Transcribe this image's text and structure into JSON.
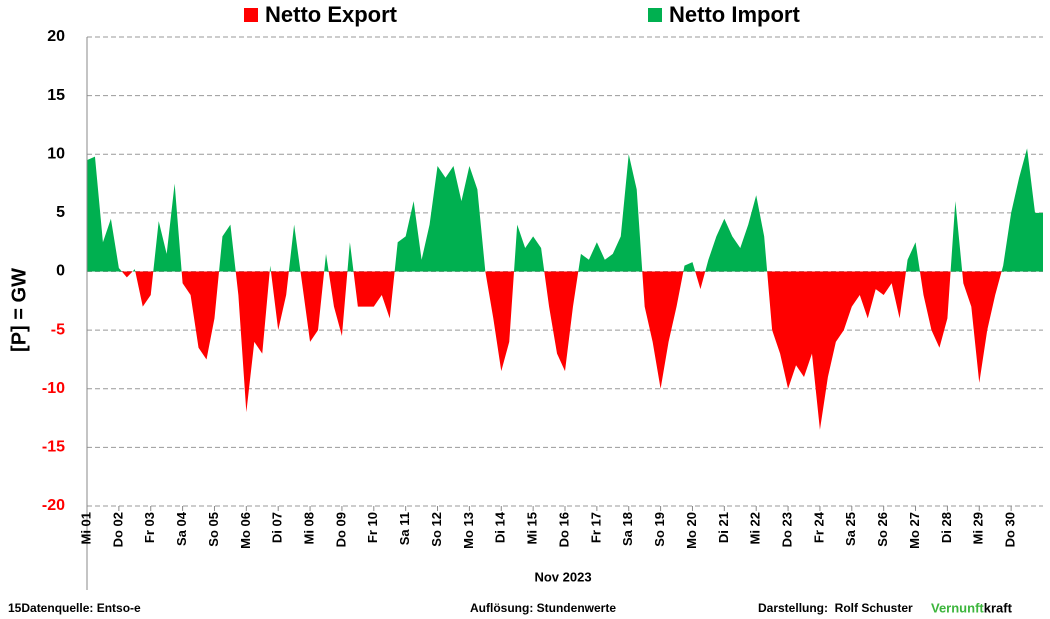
{
  "chart_data": {
    "type": "area",
    "legend": [
      {
        "name": "Netto Export",
        "color": "#ff0000",
        "sign": "negative"
      },
      {
        "name": "Netto Import",
        "color": "#00b050",
        "sign": "positive"
      }
    ],
    "ylabel": "[P] = GW",
    "xlabel": "Nov 2023",
    "ylim": [
      -20,
      20
    ],
    "yticks": [
      -20,
      -15,
      -10,
      -5,
      0,
      5,
      10,
      15,
      20
    ],
    "grid": true,
    "xlim": [
      0,
      30
    ],
    "xticks": [
      {
        "value": 0,
        "label": "Mi 01"
      },
      {
        "value": 1,
        "label": "Do 02"
      },
      {
        "value": 2,
        "label": "Fr 03"
      },
      {
        "value": 3,
        "label": "Sa 04"
      },
      {
        "value": 4,
        "label": "So 05"
      },
      {
        "value": 5,
        "label": "Mo 06"
      },
      {
        "value": 6,
        "label": "Di 07"
      },
      {
        "value": 7,
        "label": "Mi 08"
      },
      {
        "value": 8,
        "label": "Do 09"
      },
      {
        "value": 9,
        "label": "Fr 10"
      },
      {
        "value": 10,
        "label": "Sa 11"
      },
      {
        "value": 11,
        "label": "So 12"
      },
      {
        "value": 12,
        "label": "Mo 13"
      },
      {
        "value": 13,
        "label": "Di 14"
      },
      {
        "value": 14,
        "label": "Mi 15"
      },
      {
        "value": 15,
        "label": "Do 16"
      },
      {
        "value": 16,
        "label": "Fr 17"
      },
      {
        "value": 17,
        "label": "Sa 18"
      },
      {
        "value": 18,
        "label": "So 19"
      },
      {
        "value": 19,
        "label": "Mo 20"
      },
      {
        "value": 20,
        "label": "Di 21"
      },
      {
        "value": 21,
        "label": "Mi 22"
      },
      {
        "value": 22,
        "label": "Do 23"
      },
      {
        "value": 23,
        "label": "Fr 24"
      },
      {
        "value": 24,
        "label": "Sa 25"
      },
      {
        "value": 25,
        "label": "So 26"
      },
      {
        "value": 26,
        "label": "Mo 27"
      },
      {
        "value": 27,
        "label": "Di 28"
      },
      {
        "value": 28,
        "label": "Mi 29"
      },
      {
        "value": 29,
        "label": "Do 30"
      }
    ],
    "x": [
      0,
      0.25,
      0.5,
      0.75,
      1,
      1.25,
      1.5,
      1.75,
      2,
      2.25,
      2.5,
      2.75,
      3,
      3.25,
      3.5,
      3.75,
      4,
      4.25,
      4.5,
      4.75,
      5,
      5.25,
      5.5,
      5.75,
      6,
      6.25,
      6.5,
      6.75,
      7,
      7.25,
      7.5,
      7.75,
      8,
      8.25,
      8.5,
      8.75,
      9,
      9.25,
      9.5,
      9.75,
      10,
      10.25,
      10.5,
      10.75,
      11,
      11.25,
      11.5,
      11.75,
      12,
      12.25,
      12.5,
      12.75,
      13,
      13.25,
      13.5,
      13.75,
      14,
      14.25,
      14.5,
      14.75,
      15,
      15.25,
      15.5,
      15.75,
      16,
      16.25,
      16.5,
      16.75,
      17,
      17.25,
      17.5,
      17.75,
      18,
      18.25,
      18.5,
      18.75,
      19,
      19.25,
      19.5,
      19.75,
      20,
      20.25,
      20.5,
      20.75,
      21,
      21.25,
      21.5,
      21.75,
      22,
      22.25,
      22.5,
      22.75,
      23,
      23.25,
      23.5,
      23.75,
      24,
      24.25,
      24.5,
      24.75,
      25,
      25.25,
      25.5,
      25.75,
      26,
      26.25,
      26.5,
      26.75,
      27,
      27.25,
      27.5,
      27.75,
      28,
      28.25,
      28.5,
      28.75,
      29,
      29.25,
      29.5,
      29.75,
      30
    ],
    "values": [
      9.5,
      9.8,
      2.5,
      4.5,
      0.3,
      -0.5,
      0.2,
      -3,
      -2,
      4.3,
      1.5,
      7.5,
      -1,
      -2,
      -6.5,
      -7.5,
      -4,
      3,
      4,
      -2,
      -12,
      -6,
      -7,
      0.5,
      -5,
      -2,
      4,
      -1,
      -6,
      -5,
      1.5,
      -3,
      -5.5,
      2.5,
      -3,
      -3,
      -3,
      -2,
      -4,
      2.5,
      3,
      6,
      1,
      4,
      9,
      8,
      9,
      6,
      9,
      7,
      0,
      -4,
      -8.5,
      -6,
      4,
      2,
      3,
      2,
      -3,
      -7,
      -8.5,
      -3,
      1.5,
      1,
      2.5,
      1,
      1.5,
      3,
      10,
      7,
      -3,
      -6,
      -10,
      -6,
      -3,
      0.5,
      0.8,
      -1.5,
      1,
      3,
      4.5,
      3,
      2,
      4,
      6.5,
      3,
      -5,
      -7,
      -10,
      -8,
      -9,
      -7,
      -13.5,
      -9,
      -6,
      -5,
      -3,
      -2,
      -4,
      -1.5,
      -2,
      -1,
      -4,
      1,
      2.5,
      -2,
      -5,
      -6.5,
      -4,
      6,
      -1,
      -3,
      -9.5,
      -5,
      -2,
      0.5,
      5,
      8,
      10.5,
      5,
      5
    ]
  },
  "footer": {
    "source": "15Datenquelle: Entso-e",
    "resolution": "Auflösung: Stundenwerte",
    "author": "Darstellung:  Rolf Schuster",
    "brand": [
      {
        "text": "Vernunft",
        "color": "#3cb53c"
      },
      {
        "text": "kraft",
        "color": "#000000"
      }
    ]
  }
}
